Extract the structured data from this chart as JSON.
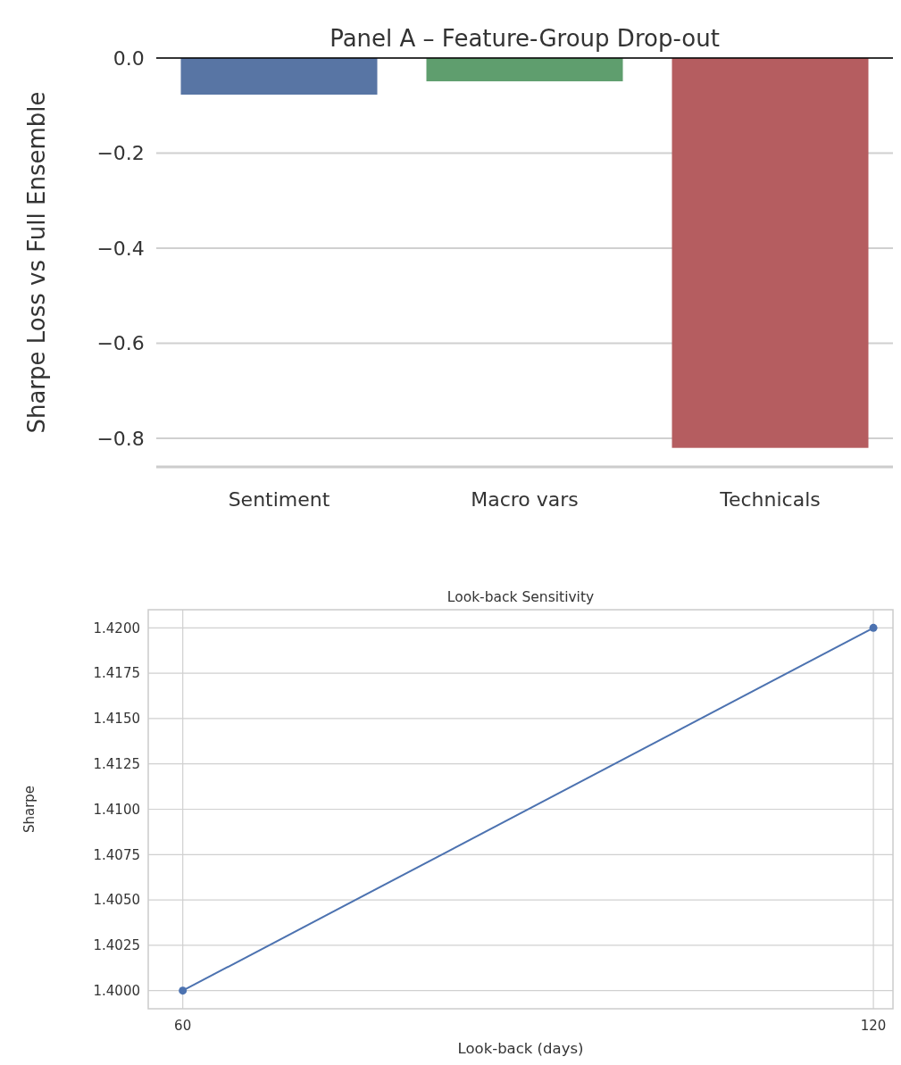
{
  "chart_data": [
    {
      "type": "bar",
      "title": "Panel A – Feature-Group Drop-out",
      "ylabel": "Sharpe Loss vs Full Ensemble",
      "categories": [
        "Sentiment",
        "Macro vars",
        "Technicals"
      ],
      "values": [
        -0.077,
        -0.049,
        -0.82
      ],
      "colors": [
        "#5875a4",
        "#5f9e6e",
        "#b55d60"
      ],
      "ylim": [
        -0.86,
        0
      ],
      "yticks": [
        {
          "value": 0,
          "label": "0.0"
        },
        {
          "value": -0.2,
          "label": "−0.2"
        },
        {
          "value": -0.4,
          "label": "−0.4"
        },
        {
          "value": -0.6,
          "label": "−0.6"
        },
        {
          "value": -0.8,
          "label": "−0.8"
        }
      ],
      "grid": "y",
      "ref_lines": [
        {
          "axis": "y",
          "value": 0,
          "color": "#000000"
        }
      ]
    },
    {
      "type": "line",
      "title": "Look-back Sensitivity",
      "xlabel": "Look-back (days)",
      "ylabel": "Sharpe",
      "x": [
        60,
        120
      ],
      "series": [
        {
          "color": "#4c72b0",
          "values": [
            1.4,
            1.42
          ]
        }
      ],
      "marker": "circle",
      "xlim": [
        57,
        121.7
      ],
      "xticks": [
        60,
        120
      ],
      "ylim": [
        1.399,
        1.421
      ],
      "yticks": [
        {
          "value": 1.4,
          "label": "1.4000"
        },
        {
          "value": 1.4025,
          "label": "1.4025"
        },
        {
          "value": 1.405,
          "label": "1.4050"
        },
        {
          "value": 1.4075,
          "label": "1.4075"
        },
        {
          "value": 1.41,
          "label": "1.4100"
        },
        {
          "value": 1.4125,
          "label": "1.4125"
        },
        {
          "value": 1.415,
          "label": "1.4150"
        },
        {
          "value": 1.4175,
          "label": "1.4175"
        },
        {
          "value": 1.42,
          "label": "1.4200"
        }
      ],
      "grid": true
    }
  ]
}
